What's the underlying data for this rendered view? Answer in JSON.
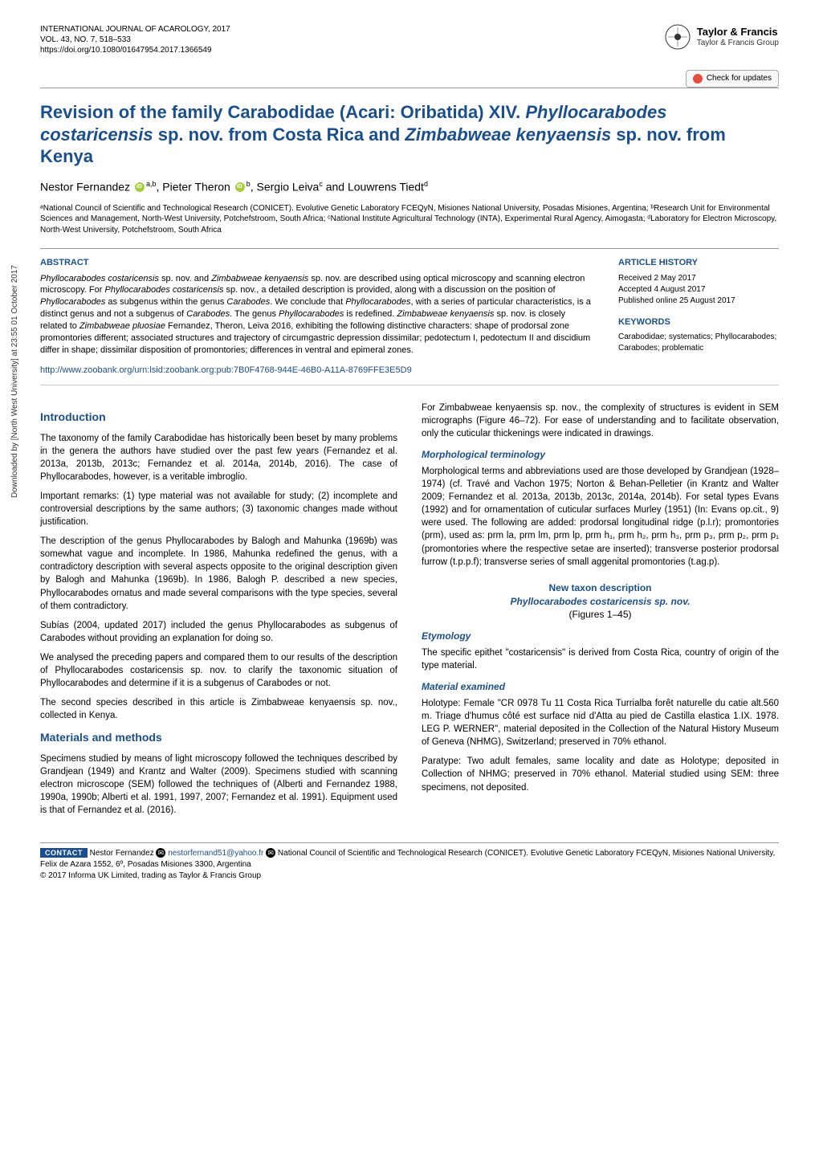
{
  "header": {
    "journal": "INTERNATIONAL JOURNAL OF ACAROLOGY, 2017",
    "volume": "VOL. 43, NO. 7, 518–533",
    "doi": "https://doi.org/10.1080/01647954.2017.1366549",
    "publisher_name": "Taylor & Francis",
    "publisher_sub": "Taylor & Francis Group",
    "check_updates": "Check for updates"
  },
  "title_parts": {
    "p1": "Revision of the family Carabodidae (Acari: Oribatida) XIV. ",
    "p2": "Phyllocarabodes costaricensis",
    "p3": " sp. nov. from Costa Rica and ",
    "p4": "Zimbabweae kenyaensis",
    "p5": " sp. nov. from Kenya"
  },
  "authors": {
    "a1": "Nestor Fernandez",
    "a1_aff": "a,b",
    "a2": "Pieter Theron",
    "a2_aff": "b",
    "a3": "Sergio Leiva",
    "a3_aff": "c",
    "a4": "Louwrens Tiedt",
    "a4_aff": "d",
    "sep_comma": ", ",
    "sep_and": " and "
  },
  "affiliations": "ᵃNational Council of Scientific and Technological Research (CONICET). Evolutive Genetic Laboratory FCEQyN, Misiones National University, Posadas Misiones, Argentina; ᵇResearch Unit for Environmental Sciences and Management, North-West University, Potchefstroom, South Africa; ᶜNational Institute Agricultural Technology (INTA), Experimental Rural Agency, Aimogasta; ᵈLaboratory for Electron Microscopy, North-West University, Potchefstroom, South Africa",
  "abstract": {
    "label": "ABSTRACT",
    "text_parts": [
      {
        "t": "Phyllocarabodes costaricensis",
        "i": true
      },
      {
        "t": " sp. nov. and "
      },
      {
        "t": "Zimbabweae kenyaensis",
        "i": true
      },
      {
        "t": " sp. nov. are described using optical microscopy and scanning electron microscopy. For "
      },
      {
        "t": "Phyllocarabodes costaricensis",
        "i": true
      },
      {
        "t": " sp. nov., a detailed description is provided, along with a discussion on the position of "
      },
      {
        "t": "Phyllocarabodes",
        "i": true
      },
      {
        "t": " as subgenus within the genus "
      },
      {
        "t": "Carabodes",
        "i": true
      },
      {
        "t": ". We conclude that "
      },
      {
        "t": "Phyllocarabodes",
        "i": true
      },
      {
        "t": ", with a series of particular characteristics, is a distinct genus and not a subgenus of "
      },
      {
        "t": "Carabodes",
        "i": true
      },
      {
        "t": ". The genus "
      },
      {
        "t": "Phyllocarabodes",
        "i": true
      },
      {
        "t": " is redefined. "
      },
      {
        "t": "Zimbabweae kenyaensis",
        "i": true
      },
      {
        "t": " sp. nov. is closely related to "
      },
      {
        "t": "Zimbabweae pluosiae",
        "i": true
      },
      {
        "t": " Fernandez, Theron, Leiva 2016, exhibiting the following distinctive characters: shape of prodorsal zone promontories different; associated structures and trajectory of circumgastric depression dissimilar; pedotectum I, pedotectum II and discidium differ in shape; dissimilar disposition of promontories; differences in ventral and epimeral zones."
      }
    ],
    "zoobank": "http://www.zoobank.org/urn:lsid:zoobank.org:pub:7B0F4768-944E-46B0-A11A-8769FFE3E5D9"
  },
  "history": {
    "label": "ARTICLE HISTORY",
    "received": "Received 2 May 2017",
    "accepted": "Accepted 4 August 2017",
    "published": "Published online 25 August 2017"
  },
  "keywords": {
    "label": "KEYWORDS",
    "text": "Carabodidae; systematics; Phyllocarabodes; Carabodes; problematic"
  },
  "sidebar_note": "Downloaded by [North West University] at 23:55 01 October 2017",
  "body": {
    "left": {
      "h_intro": "Introduction",
      "p1": "The taxonomy of the family Carabodidae has historically been beset by many problems in the genera the authors have studied over the past few years (Fernandez et al. 2013a, 2013b, 2013c; Fernandez et al. 2014a, 2014b, 2016). The case of Phyllocarabodes, however, is a veritable imbroglio.",
      "p2": "Important remarks: (1) type material was not available for study; (2) incomplete and controversial descriptions by the same authors; (3) taxonomic changes made without justification.",
      "p3": "The description of the genus Phyllocarabodes by Balogh and Mahunka (1969b) was somewhat vague and incomplete. In 1986, Mahunka redefined the genus, with a contradictory description with several aspects opposite to the original description given by Balogh and Mahunka (1969b). In 1986, Balogh P. described a new species, Phyllocarabodes ornatus and made several comparisons with the type species, several of them contradictory.",
      "p4": "Subías (2004, updated 2017) included the genus Phyllocarabodes as subgenus of Carabodes without providing an explanation for doing so.",
      "p5": "We analysed the preceding papers and compared them to our results of the description of Phyllocarabodes costaricensis sp. nov. to clarify the taxonomic situation of Phyllocarabodes and determine if it is a subgenus of Carabodes or not.",
      "p6": "The second species described in this article is Zimbabweae kenyaensis sp. nov., collected in Kenya.",
      "h_mm": "Materials and methods",
      "p7": "Specimens studied by means of light microscopy followed the techniques described by Grandjean (1949) and Krantz and Walter (2009). Specimens studied with scanning electron microscope (SEM) followed the techniques of (Alberti and Fernandez 1988, 1990a, 1990b; Alberti et al. 1991, 1997, 2007; Fernandez et al. 1991). Equipment used is that of Fernandez et al. (2016)."
    },
    "right": {
      "p1": "For Zimbabweae kenyaensis sp. nov., the complexity of structures is evident in SEM micrographs (Figure 46–72). For ease of understanding and to facilitate observation, only the cuticular thickenings were indicated in drawings.",
      "h_morph": "Morphological terminology",
      "p2": "Morphological terms and abbreviations used are those developed by Grandjean (1928–1974) (cf. Travé and Vachon 1975; Norton & Behan-Pelletier (in Krantz and Walter 2009; Fernandez et al. 2013a, 2013b, 2013c, 2014a, 2014b). For setal types Evans (1992) and for ornamentation of cuticular surfaces Murley (1951) (In: Evans op.cit., 9) were used. The following are added: prodorsal longitudinal ridge (p.l.r); promontories (prm), used as: prm la, prm lm, prm lp, prm h₁, prm h₂, prm h₃, prm p₃, prm p₂, prm p₁ (promontories where the respective setae are inserted); transverse posterior prodorsal furrow (t.p.p.f); transverse series of small aggenital promontories (t.ag.p).",
      "taxon_l1": "New taxon description",
      "taxon_l2": "Phyllocarabodes costaricensis sp. nov.",
      "taxon_l3": "(Figures 1–45)",
      "h_etym": "Etymology",
      "p3": "The specific epithet \"costaricensis\" is derived from Costa Rica, country of origin of the type material.",
      "h_mat": "Material examined",
      "p4": "Holotype: Female \"CR 0978 Tu 11 Costa Rica Turrialba forêt naturelle du catie alt.560 m. Triage d'humus côté est surface nid d'Atta au pied de Castilla elastica 1.IX. 1978. LEG P. WERNER\", material deposited in the Collection of the Natural History Museum of Geneva (NHMG), Switzerland; preserved in 70% ethanol.",
      "p5": "Paratype: Two adult females, same locality and date as Holotype; deposited in Collection of NHMG; preserved in 70% ethanol. Material studied using SEM: three specimens, not deposited."
    }
  },
  "footer": {
    "contact_label": "CONTACT",
    "author": "Nestor Fernandez",
    "email": "nestorfernand51@yahoo.fr",
    "addr": "National Council of Scientific and Technological Research (CONICET). Evolutive Genetic Laboratory FCEQyN, Misiones National University, Felix de Azara 1552, 6º, Posadas Misiones 3300, Argentina",
    "copyright": "© 2017 Informa UK Limited, trading as Taylor & Francis Group"
  },
  "colors": {
    "brand_blue": "#1a4f8f",
    "text": "#000000",
    "rule": "#999999"
  }
}
